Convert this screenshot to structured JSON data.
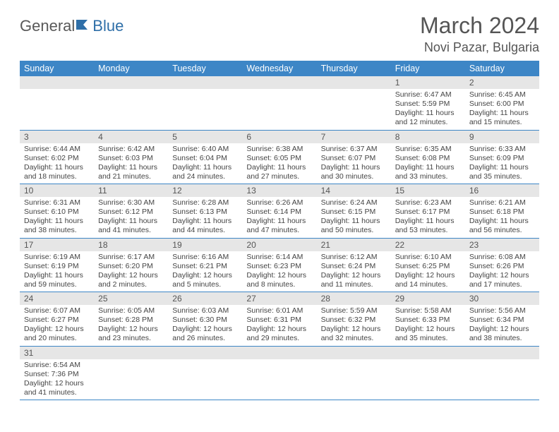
{
  "brand": {
    "part1": "General",
    "part2": "Blue"
  },
  "title": "March 2024",
  "location": "Novi Pazar, Bulgaria",
  "colors": {
    "header_bg": "#3d86c6",
    "daynum_bg": "#e6e6e6",
    "row_border": "#3d86c6",
    "brand_gray": "#595959",
    "brand_blue": "#2f6fa8"
  },
  "weekdays": [
    "Sunday",
    "Monday",
    "Tuesday",
    "Wednesday",
    "Thursday",
    "Friday",
    "Saturday"
  ],
  "weeks": [
    [
      null,
      null,
      null,
      null,
      null,
      {
        "n": "1",
        "sr": "Sunrise: 6:47 AM",
        "ss": "Sunset: 5:59 PM",
        "d1": "Daylight: 11 hours",
        "d2": "and 12 minutes."
      },
      {
        "n": "2",
        "sr": "Sunrise: 6:45 AM",
        "ss": "Sunset: 6:00 PM",
        "d1": "Daylight: 11 hours",
        "d2": "and 15 minutes."
      }
    ],
    [
      {
        "n": "3",
        "sr": "Sunrise: 6:44 AM",
        "ss": "Sunset: 6:02 PM",
        "d1": "Daylight: 11 hours",
        "d2": "and 18 minutes."
      },
      {
        "n": "4",
        "sr": "Sunrise: 6:42 AM",
        "ss": "Sunset: 6:03 PM",
        "d1": "Daylight: 11 hours",
        "d2": "and 21 minutes."
      },
      {
        "n": "5",
        "sr": "Sunrise: 6:40 AM",
        "ss": "Sunset: 6:04 PM",
        "d1": "Daylight: 11 hours",
        "d2": "and 24 minutes."
      },
      {
        "n": "6",
        "sr": "Sunrise: 6:38 AM",
        "ss": "Sunset: 6:05 PM",
        "d1": "Daylight: 11 hours",
        "d2": "and 27 minutes."
      },
      {
        "n": "7",
        "sr": "Sunrise: 6:37 AM",
        "ss": "Sunset: 6:07 PM",
        "d1": "Daylight: 11 hours",
        "d2": "and 30 minutes."
      },
      {
        "n": "8",
        "sr": "Sunrise: 6:35 AM",
        "ss": "Sunset: 6:08 PM",
        "d1": "Daylight: 11 hours",
        "d2": "and 33 minutes."
      },
      {
        "n": "9",
        "sr": "Sunrise: 6:33 AM",
        "ss": "Sunset: 6:09 PM",
        "d1": "Daylight: 11 hours",
        "d2": "and 35 minutes."
      }
    ],
    [
      {
        "n": "10",
        "sr": "Sunrise: 6:31 AM",
        "ss": "Sunset: 6:10 PM",
        "d1": "Daylight: 11 hours",
        "d2": "and 38 minutes."
      },
      {
        "n": "11",
        "sr": "Sunrise: 6:30 AM",
        "ss": "Sunset: 6:12 PM",
        "d1": "Daylight: 11 hours",
        "d2": "and 41 minutes."
      },
      {
        "n": "12",
        "sr": "Sunrise: 6:28 AM",
        "ss": "Sunset: 6:13 PM",
        "d1": "Daylight: 11 hours",
        "d2": "and 44 minutes."
      },
      {
        "n": "13",
        "sr": "Sunrise: 6:26 AM",
        "ss": "Sunset: 6:14 PM",
        "d1": "Daylight: 11 hours",
        "d2": "and 47 minutes."
      },
      {
        "n": "14",
        "sr": "Sunrise: 6:24 AM",
        "ss": "Sunset: 6:15 PM",
        "d1": "Daylight: 11 hours",
        "d2": "and 50 minutes."
      },
      {
        "n": "15",
        "sr": "Sunrise: 6:23 AM",
        "ss": "Sunset: 6:17 PM",
        "d1": "Daylight: 11 hours",
        "d2": "and 53 minutes."
      },
      {
        "n": "16",
        "sr": "Sunrise: 6:21 AM",
        "ss": "Sunset: 6:18 PM",
        "d1": "Daylight: 11 hours",
        "d2": "and 56 minutes."
      }
    ],
    [
      {
        "n": "17",
        "sr": "Sunrise: 6:19 AM",
        "ss": "Sunset: 6:19 PM",
        "d1": "Daylight: 11 hours",
        "d2": "and 59 minutes."
      },
      {
        "n": "18",
        "sr": "Sunrise: 6:17 AM",
        "ss": "Sunset: 6:20 PM",
        "d1": "Daylight: 12 hours",
        "d2": "and 2 minutes."
      },
      {
        "n": "19",
        "sr": "Sunrise: 6:16 AM",
        "ss": "Sunset: 6:21 PM",
        "d1": "Daylight: 12 hours",
        "d2": "and 5 minutes."
      },
      {
        "n": "20",
        "sr": "Sunrise: 6:14 AM",
        "ss": "Sunset: 6:23 PM",
        "d1": "Daylight: 12 hours",
        "d2": "and 8 minutes."
      },
      {
        "n": "21",
        "sr": "Sunrise: 6:12 AM",
        "ss": "Sunset: 6:24 PM",
        "d1": "Daylight: 12 hours",
        "d2": "and 11 minutes."
      },
      {
        "n": "22",
        "sr": "Sunrise: 6:10 AM",
        "ss": "Sunset: 6:25 PM",
        "d1": "Daylight: 12 hours",
        "d2": "and 14 minutes."
      },
      {
        "n": "23",
        "sr": "Sunrise: 6:08 AM",
        "ss": "Sunset: 6:26 PM",
        "d1": "Daylight: 12 hours",
        "d2": "and 17 minutes."
      }
    ],
    [
      {
        "n": "24",
        "sr": "Sunrise: 6:07 AM",
        "ss": "Sunset: 6:27 PM",
        "d1": "Daylight: 12 hours",
        "d2": "and 20 minutes."
      },
      {
        "n": "25",
        "sr": "Sunrise: 6:05 AM",
        "ss": "Sunset: 6:28 PM",
        "d1": "Daylight: 12 hours",
        "d2": "and 23 minutes."
      },
      {
        "n": "26",
        "sr": "Sunrise: 6:03 AM",
        "ss": "Sunset: 6:30 PM",
        "d1": "Daylight: 12 hours",
        "d2": "and 26 minutes."
      },
      {
        "n": "27",
        "sr": "Sunrise: 6:01 AM",
        "ss": "Sunset: 6:31 PM",
        "d1": "Daylight: 12 hours",
        "d2": "and 29 minutes."
      },
      {
        "n": "28",
        "sr": "Sunrise: 5:59 AM",
        "ss": "Sunset: 6:32 PM",
        "d1": "Daylight: 12 hours",
        "d2": "and 32 minutes."
      },
      {
        "n": "29",
        "sr": "Sunrise: 5:58 AM",
        "ss": "Sunset: 6:33 PM",
        "d1": "Daylight: 12 hours",
        "d2": "and 35 minutes."
      },
      {
        "n": "30",
        "sr": "Sunrise: 5:56 AM",
        "ss": "Sunset: 6:34 PM",
        "d1": "Daylight: 12 hours",
        "d2": "and 38 minutes."
      }
    ],
    [
      {
        "n": "31",
        "sr": "Sunrise: 6:54 AM",
        "ss": "Sunset: 7:36 PM",
        "d1": "Daylight: 12 hours",
        "d2": "and 41 minutes."
      },
      null,
      null,
      null,
      null,
      null,
      null
    ]
  ]
}
